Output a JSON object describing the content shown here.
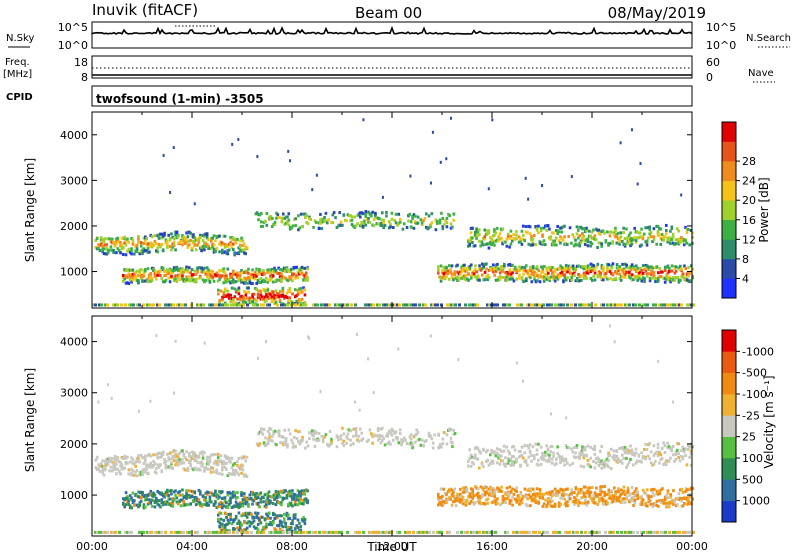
{
  "header": {
    "station": "Inuvik (fitACF)",
    "beam": "Beam 00",
    "date": "08/May/2019"
  },
  "top_panels": {
    "nsky_label": "N.Sky",
    "nsky_ticks": [
      "10^5",
      "10^0"
    ],
    "nsearch_label": "N.Search",
    "nsearch_ticks": [
      "10^5",
      "10^0"
    ],
    "freq_label_line1": "Freq.",
    "freq_label_line2": "[MHz]",
    "freq_ticks": [
      "18",
      "8"
    ],
    "nave_label": "Nave",
    "nave_ticks": [
      "60",
      "0"
    ],
    "cpid_label": "CPID",
    "cpid_text": "twofsound (1-min) -3505"
  },
  "chart_data": [
    {
      "type": "heatmap",
      "name": "power",
      "ylabel": "Slant Range [km]",
      "ylim": [
        200,
        4500
      ],
      "yticks": [
        1000,
        2000,
        3000,
        4000
      ],
      "xlim_hours": [
        0,
        24
      ],
      "colorbar": {
        "label": "Power [dB]",
        "ticks": [
          "4",
          "8",
          "12",
          "16",
          "20",
          "24",
          "28"
        ],
        "colors": [
          "#1e32ff",
          "#2a4aa8",
          "#2e8e6a",
          "#3cb043",
          "#a0d02c",
          "#f5c21a",
          "#f08c1e",
          "#e8531a",
          "#e00000"
        ]
      }
    },
    {
      "type": "heatmap",
      "name": "velocity",
      "ylabel": "Slant Range [km]",
      "ylim": [
        200,
        4500
      ],
      "yticks": [
        1000,
        2000,
        3000,
        4000
      ],
      "xlim_hours": [
        0,
        24
      ],
      "xticks": [
        "00:00",
        "04:00",
        "08:00",
        "12:00",
        "16:00",
        "20:00",
        "00:00"
      ],
      "xlabel": "Time UT",
      "colorbar": {
        "label": "Velocity [m s⁻¹]",
        "ticks": [
          "1000",
          "500",
          "100",
          "25",
          "-25",
          "-100",
          "-500",
          "-1000"
        ],
        "colors": [
          "#1b3cc8",
          "#2f6fa0",
          "#2e8e55",
          "#58c040",
          "#c8c8c0",
          "#f0b030",
          "#f08a10",
          "#ec5a10",
          "#e00000"
        ]
      }
    }
  ]
}
